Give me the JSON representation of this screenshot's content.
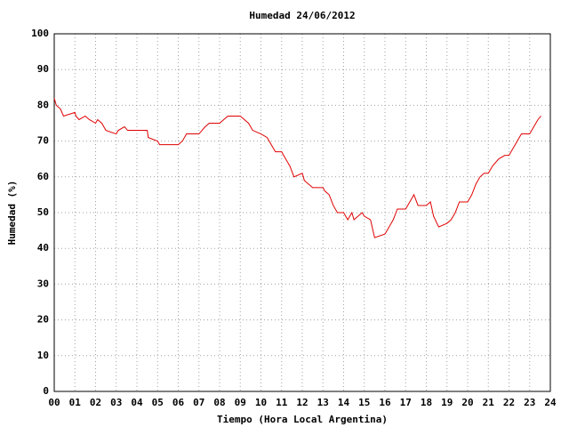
{
  "chart_data": {
    "type": "line",
    "title": "Humedad 24/06/2012",
    "x_label": "Tiempo (Hora Local Argentina)",
    "y_label": "Humedad (%)",
    "xlim": [
      0,
      24
    ],
    "xticks": [
      {
        "value": 0,
        "label": "00"
      },
      {
        "value": 1,
        "label": "01"
      },
      {
        "value": 2,
        "label": "02"
      },
      {
        "value": 3,
        "label": "03"
      },
      {
        "value": 4,
        "label": "04"
      },
      {
        "value": 5,
        "label": "05"
      },
      {
        "value": 6,
        "label": "06"
      },
      {
        "value": 7,
        "label": "07"
      },
      {
        "value": 8,
        "label": "08"
      },
      {
        "value": 9,
        "label": "09"
      },
      10,
      11,
      12,
      13,
      14,
      15,
      16,
      17,
      18,
      19,
      20,
      21,
      22,
      23,
      24
    ],
    "ylim": [
      0,
      100
    ],
    "yticks": [
      0,
      10,
      20,
      30,
      40,
      50,
      60,
      70,
      80,
      90,
      100
    ],
    "grid": true,
    "x": [
      0.0,
      0.1,
      0.3,
      0.45,
      1.0,
      1.05,
      1.2,
      1.5,
      1.7,
      2.0,
      2.1,
      2.3,
      2.5,
      3.0,
      3.1,
      3.4,
      3.55,
      4.0,
      4.5,
      4.55,
      5.0,
      5.1,
      6.0,
      6.2,
      6.4,
      7.0,
      7.15,
      7.3,
      7.5,
      8.0,
      8.2,
      8.4,
      9.0,
      9.2,
      9.4,
      9.6,
      10.0,
      10.3,
      10.5,
      10.7,
      11.0,
      11.2,
      11.4,
      11.6,
      12.0,
      12.1,
      12.3,
      12.5,
      13.0,
      13.1,
      13.3,
      13.5,
      13.7,
      14.0,
      14.2,
      14.4,
      14.5,
      14.9,
      15.0,
      15.3,
      15.5,
      16.0,
      16.2,
      16.4,
      16.6,
      17.0,
      17.2,
      17.4,
      17.6,
      18.0,
      18.2,
      18.35,
      18.6,
      19.0,
      19.2,
      19.4,
      19.6,
      20.0,
      20.2,
      20.4,
      20.6,
      20.8,
      21.0,
      21.2,
      21.5,
      21.8,
      22.0,
      22.2,
      22.4,
      22.6,
      23.0,
      23.2,
      23.4,
      23.55
    ],
    "series": [
      {
        "color": "#e00000",
        "values": [
          82,
          80,
          79,
          77,
          78,
          77,
          76,
          77,
          76,
          75,
          76,
          75,
          73,
          72,
          73,
          74,
          73,
          73,
          73,
          71,
          70,
          69,
          69,
          70,
          72,
          72,
          73,
          74,
          75,
          75,
          76,
          77,
          77,
          76,
          75,
          73,
          72,
          71,
          69,
          67,
          67,
          65,
          63,
          60,
          61,
          59,
          58,
          57,
          57,
          56,
          55,
          52,
          50,
          50,
          48,
          50,
          48,
          50,
          49,
          48,
          43,
          44,
          46,
          48,
          51,
          51,
          53,
          55,
          52,
          52,
          53,
          49,
          46,
          47,
          48,
          50,
          53,
          53,
          55,
          58,
          60,
          61,
          61,
          63,
          65,
          66,
          66,
          68,
          70,
          72,
          72,
          74,
          76,
          77
        ]
      }
    ]
  }
}
